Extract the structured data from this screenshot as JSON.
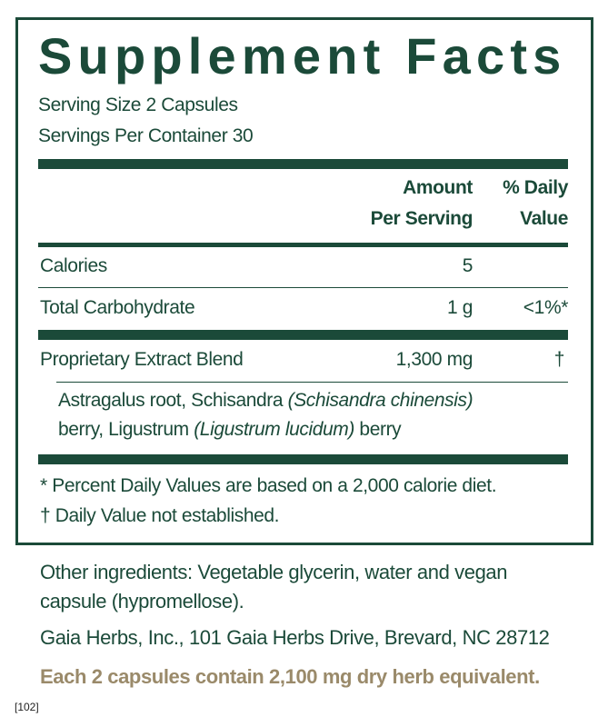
{
  "title": "Supplement Facts",
  "serving_size": "Serving Size 2 Capsules",
  "servings_per_container": "Servings Per Container 30",
  "header": {
    "amount_line1": "Amount",
    "amount_line2": "Per Serving",
    "dv_line1": "% Daily",
    "dv_line2": "Value"
  },
  "rows": [
    {
      "name": "Calories",
      "amount": "5",
      "dv": ""
    },
    {
      "name": "Total Carbohydrate",
      "amount": "1 g",
      "dv": "<1%*"
    },
    {
      "name": "Proprietary Extract Blend",
      "amount": "1,300 mg",
      "dv": "†"
    }
  ],
  "blend": {
    "p1": "Astragalus root, Schisandra ",
    "p1_italic": "(Schisandra chinensis)",
    "p2": "berry, Ligustrum ",
    "p2_italic": "(Ligustrum lucidum)",
    "p2_end": " berry"
  },
  "footnotes": [
    "*  Percent Daily Values are based on a 2,000 calorie diet.",
    "† Daily Value not established."
  ],
  "other_ingredients_line1": "Other ingredients: Vegetable glycerin, water and vegan",
  "other_ingredients_line2": "capsule (hypromellose).",
  "address": "Gaia Herbs, Inc., 101 Gaia Herbs Drive, Brevard, NC 28712",
  "equivalent": "Each 2 capsules contain 2,100 mg dry herb equivalent.",
  "code": "[102]",
  "colors": {
    "green": "#1b4a39",
    "tan": "#9a8a6a"
  }
}
